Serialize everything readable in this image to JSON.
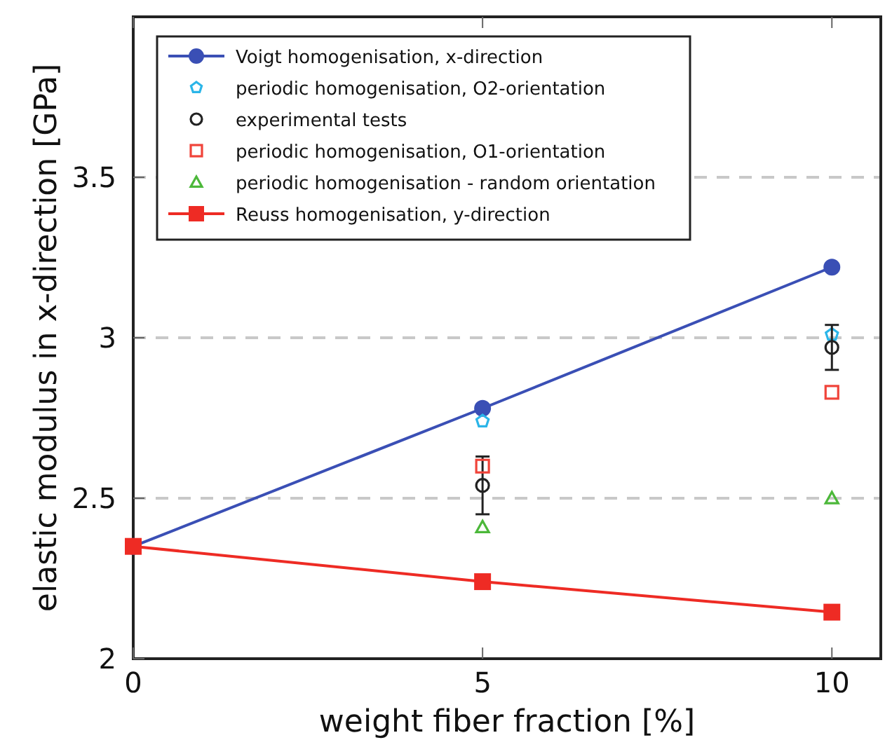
{
  "chart_data": {
    "type": "line",
    "xlabel": "weight fiber fraction [%]",
    "ylabel": "elastic modulus in x-direction [GPa]",
    "xlim": [
      0,
      10.7
    ],
    "xticks": [
      0,
      5,
      10
    ],
    "ylim": [
      2,
      4
    ],
    "yticks": [
      2,
      2.5,
      3,
      3.5
    ],
    "grid": "y",
    "legend": "top left",
    "series": [
      {
        "name": "Voigt homogenisation, x-direction",
        "color": "#3a4fb5",
        "marker": "circle",
        "x": [
          0,
          5,
          10
        ],
        "values": [
          2.35,
          2.78,
          3.22
        ]
      },
      {
        "name": "periodic homogenisation, O2-orientation",
        "type": "scatter",
        "color": "#2bb5e8",
        "x": [
          5,
          10
        ],
        "values": [
          2.74,
          3.01
        ]
      },
      {
        "name": "experimental tests",
        "type": "scatter",
        "color": "#222222",
        "marker": "circle",
        "x": [
          5,
          10
        ],
        "values": [
          2.54,
          2.97
        ],
        "errors": [
          0.09,
          0.07
        ]
      },
      {
        "name": "periodic homogenisation, O1-orientation",
        "type": "scatter",
        "color": "#f0443a",
        "marker": "square",
        "x": [
          5,
          10
        ],
        "values": [
          2.6,
          2.83
        ]
      },
      {
        "name": "periodic homogenisation - random orientation",
        "type": "scatter",
        "color": "#4cb83a",
        "marker": "triangle",
        "x": [
          5,
          10
        ],
        "values": [
          2.41,
          2.5
        ]
      },
      {
        "name": "Reuss homogenisation, y-direction",
        "color": "#ee2b24",
        "marker": "square",
        "x": [
          0,
          5,
          10
        ],
        "values": [
          2.35,
          2.24,
          2.145
        ]
      }
    ]
  }
}
